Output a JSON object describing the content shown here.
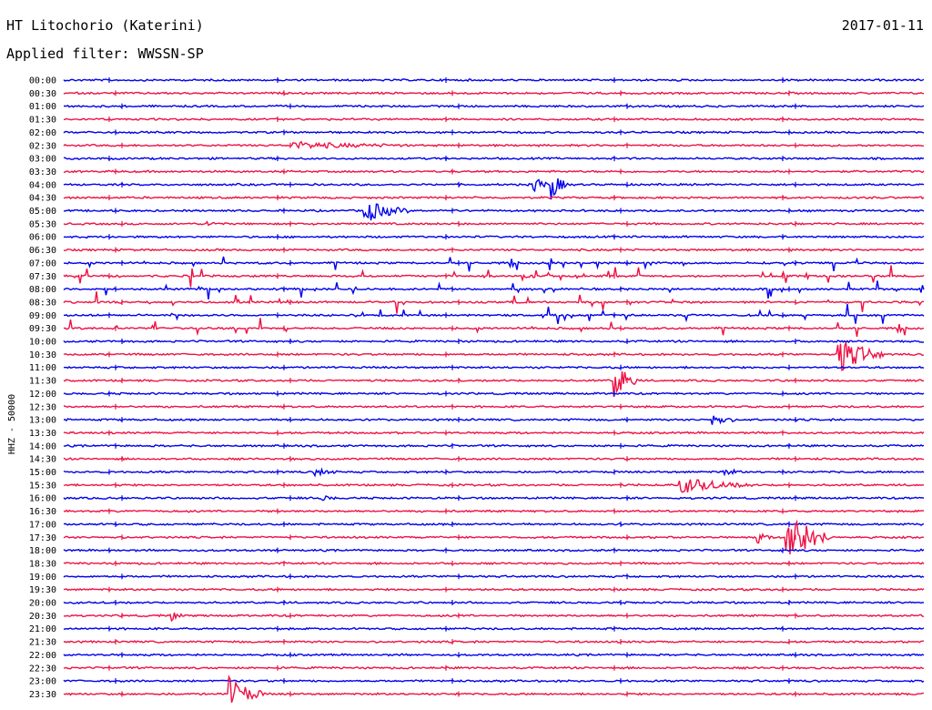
{
  "header": {
    "station": "HT Litochorio (Katerini)",
    "date": "2017-01-11",
    "filter": "Applied filter: WWSSN-SP"
  },
  "colors": {
    "trace_a": "#0000ee",
    "trace_b": "#ee1144",
    "background": "#ffffff"
  },
  "chart_data": {
    "type": "line",
    "title": "HT Litochorio (Katerini)",
    "ylabel": "HHZ - 50000",
    "xlabel": "",
    "rows": [
      "00:00",
      "00:30",
      "01:00",
      "01:30",
      "02:00",
      "02:30",
      "03:00",
      "03:30",
      "04:00",
      "04:30",
      "05:00",
      "05:30",
      "06:00",
      "06:30",
      "07:00",
      "07:30",
      "08:00",
      "08:30",
      "09:00",
      "09:30",
      "10:00",
      "10:30",
      "11:00",
      "11:30",
      "12:00",
      "12:30",
      "13:00",
      "13:30",
      "14:00",
      "14:30",
      "15:00",
      "15:30",
      "16:00",
      "16:30",
      "17:00",
      "17:30",
      "18:00",
      "18:30",
      "19:00",
      "19:30",
      "20:00",
      "20:30",
      "21:00",
      "21:30",
      "22:00",
      "22:30",
      "23:00",
      "23:30"
    ],
    "series": [
      {
        "values": [
          "00:00",
          "01:00",
          "02:00",
          "03:00",
          "04:00",
          "05:00",
          "06:00",
          "07:00",
          "08:00",
          "09:00",
          "10:00",
          "11:00",
          "12:00",
          "13:00",
          "14:00",
          "15:00",
          "16:00",
          "17:00",
          "18:00",
          "19:00",
          "20:00",
          "21:00",
          "22:00",
          "23:00"
        ]
      },
      {
        "values": [
          "00:30",
          "01:30",
          "02:30",
          "03:30",
          "04:30",
          "05:30",
          "06:30",
          "07:30",
          "08:30",
          "09:30",
          "10:30",
          "11:30",
          "12:30",
          "13:30",
          "14:30",
          "15:30",
          "16:30",
          "17:30",
          "18:30",
          "19:30",
          "20:30",
          "21:30",
          "22:30",
          "23:30"
        ]
      }
    ],
    "events": [
      {
        "row": "02:30",
        "minute": 8.0,
        "amplitude": 0.25,
        "duration": 4.0
      },
      {
        "row": "04:00",
        "minute": 16.4,
        "amplitude": 0.8,
        "duration": 0.5
      },
      {
        "row": "04:00",
        "minute": 17.0,
        "amplitude": 1.1,
        "duration": 0.6
      },
      {
        "row": "05:00",
        "minute": 10.5,
        "amplitude": 0.9,
        "duration": 1.5
      },
      {
        "row": "05:30",
        "minute": 5.0,
        "amplitude": 0.2,
        "duration": 0.5
      },
      {
        "row": "07:30",
        "minute": 16.0,
        "amplitude": 0.25,
        "duration": 0.6
      },
      {
        "row": "10:30",
        "minute": 27.0,
        "amplitude": 1.5,
        "duration": 1.6
      },
      {
        "row": "11:30",
        "minute": 19.2,
        "amplitude": 1.6,
        "duration": 0.8
      },
      {
        "row": "13:00",
        "minute": 22.6,
        "amplitude": 0.5,
        "duration": 0.8
      },
      {
        "row": "15:00",
        "minute": 8.8,
        "amplitude": 0.3,
        "duration": 0.8
      },
      {
        "row": "15:00",
        "minute": 23.0,
        "amplitude": 0.3,
        "duration": 0.6
      },
      {
        "row": "15:30",
        "minute": 21.5,
        "amplitude": 0.6,
        "duration": 2.5
      },
      {
        "row": "16:00",
        "minute": 9.0,
        "amplitude": 0.2,
        "duration": 0.5
      },
      {
        "row": "17:30",
        "minute": 25.2,
        "amplitude": 2.5,
        "duration": 1.5
      },
      {
        "row": "17:30",
        "minute": 24.2,
        "amplitude": 0.4,
        "duration": 0.5
      },
      {
        "row": "20:30",
        "minute": 3.8,
        "amplitude": 0.4,
        "duration": 0.3
      },
      {
        "row": "23:30",
        "minute": 5.8,
        "amplitude": 1.3,
        "duration": 1.2
      }
    ],
    "grid": false,
    "legend": "none"
  }
}
